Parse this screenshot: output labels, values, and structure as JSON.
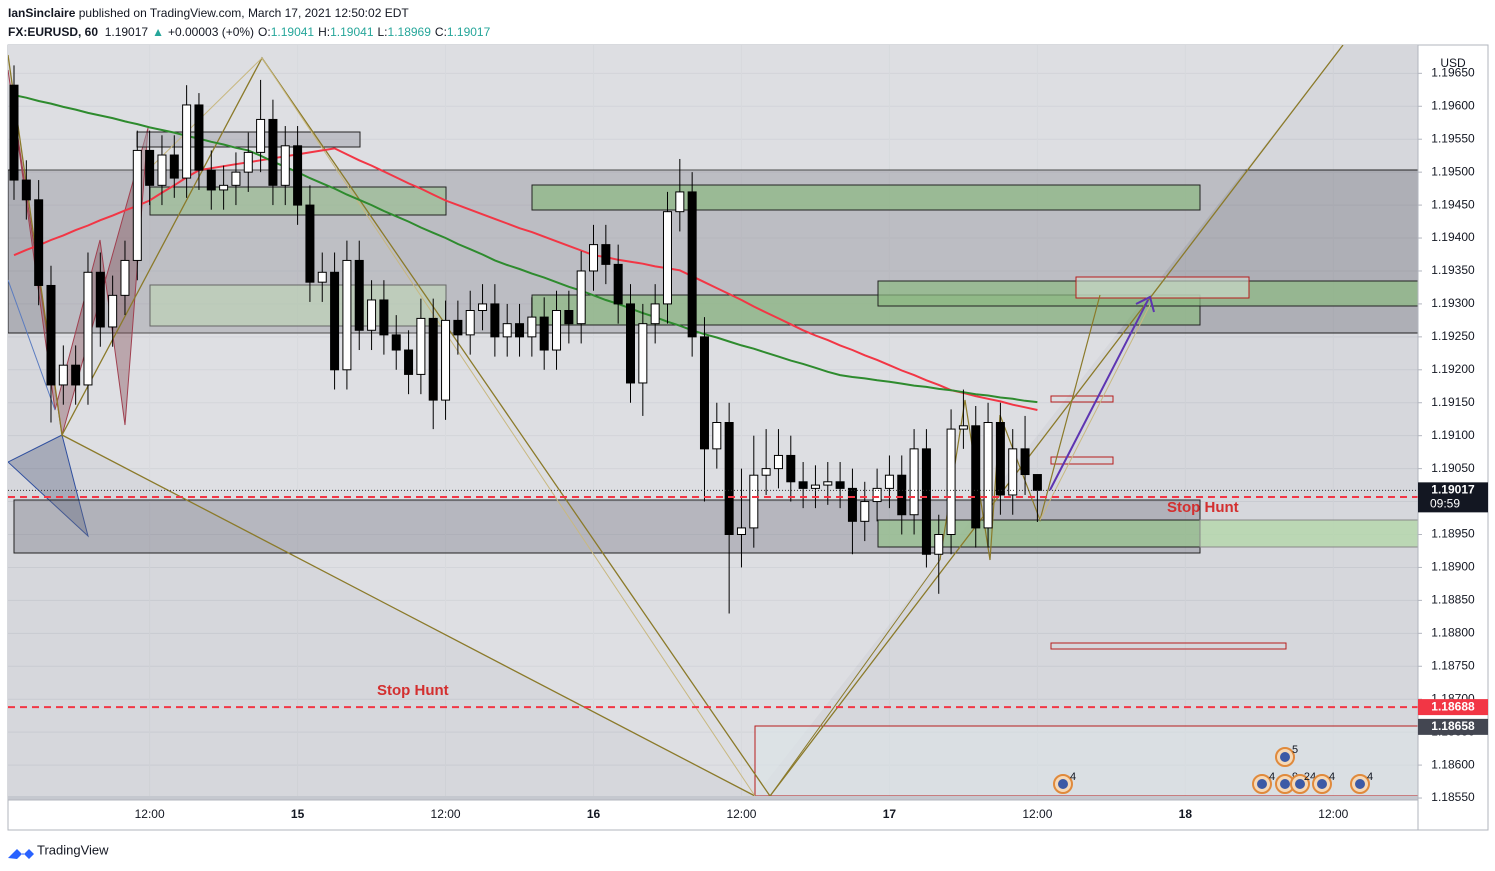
{
  "header": {
    "author": "IanSinclaire",
    "published": "published on TradingView.com, March 17, 2021 12:50:02 EDT",
    "change": "+0.00003 (+0%)",
    "ohlc_labels": [
      "O:",
      "H:",
      "L:",
      "C:"
    ]
  },
  "chart_data": {
    "type": "candlestick",
    "symbol": "FX:EURUSD, 60",
    "currency": "USD",
    "up_color": "#ffffff",
    "down_color": "#000000",
    "categories": [
      null,
      null,
      null,
      null,
      null,
      null,
      null,
      null,
      null,
      null,
      null,
      "12:00",
      null,
      null,
      null,
      null,
      null,
      null,
      null,
      null,
      null,
      null,
      null,
      "15",
      null,
      null,
      null,
      null,
      null,
      null,
      null,
      null,
      null,
      null,
      null,
      "12:00",
      null,
      null,
      null,
      null,
      null,
      null,
      null,
      null,
      null,
      null,
      null,
      "16",
      null,
      null,
      null,
      null,
      null,
      null,
      null,
      null,
      null,
      null,
      null,
      "12:00",
      null,
      null,
      null,
      null,
      null,
      null,
      null,
      null,
      null,
      null,
      null,
      "17",
      null,
      null,
      null,
      null,
      null,
      null,
      null,
      null,
      null,
      null,
      null,
      "12:00",
      null,
      null,
      null,
      null,
      null,
      null,
      null,
      null,
      null,
      null,
      null,
      "18",
      null,
      null,
      null,
      null,
      null,
      null,
      null,
      null,
      null,
      null,
      null,
      "12:00",
      null,
      null,
      null,
      null,
      null,
      null
    ],
    "open": [
      1.19632,
      1.19488,
      1.19458,
      1.19328,
      1.19177,
      1.19207,
      1.19177,
      1.19348,
      1.19265,
      1.19313,
      1.19366,
      1.19533,
      1.1948,
      1.19526,
      1.19491,
      1.19602,
      1.19503,
      1.19473,
      1.1948,
      1.195,
      1.1953,
      1.1958,
      1.1948,
      1.1954,
      1.1945,
      1.19333,
      1.19348,
      1.192,
      1.19366,
      1.1926,
      1.19306,
      1.19253,
      1.1923,
      1.19193,
      1.19278,
      1.19154,
      1.19275,
      1.19253,
      1.1929,
      1.193,
      1.1925,
      1.1927,
      1.1925,
      1.1928,
      1.1923,
      1.1929,
      1.1927,
      1.1935,
      1.1939,
      1.1936,
      1.193,
      1.1918,
      1.1927,
      1.193,
      1.1944,
      1.1947,
      1.1925,
      1.1908,
      1.1912,
      1.1895,
      1.1896,
      1.1904,
      1.1905,
      1.1907,
      1.1903,
      1.1902,
      1.19025,
      1.1903,
      1.1902,
      1.1897,
      1.19,
      1.1902,
      1.1904,
      1.1898,
      1.1908,
      1.1892,
      1.1895,
      1.1911,
      1.19115,
      1.1896,
      1.1912,
      1.1901,
      1.1908,
      1.19041,
      null,
      null,
      null,
      null,
      null,
      null,
      null,
      null,
      null,
      null,
      null,
      null,
      null,
      null,
      null,
      null,
      null,
      null,
      null,
      null,
      null,
      null,
      null,
      null,
      null,
      null,
      null,
      null,
      null,
      null
    ],
    "high": [
      1.19662,
      1.19518,
      1.19488,
      1.19358,
      1.19237,
      1.19237,
      1.19378,
      1.19378,
      1.19343,
      1.19396,
      1.19563,
      1.19563,
      1.19556,
      1.19556,
      1.19632,
      1.1962,
      1.19533,
      1.1951,
      1.1953,
      1.1956,
      1.1964,
      1.1961,
      1.1957,
      1.1957,
      1.1948,
      1.19378,
      1.19378,
      1.19396,
      1.19396,
      1.19336,
      1.19336,
      1.19283,
      1.1926,
      1.19308,
      1.19308,
      1.19305,
      1.19305,
      1.1932,
      1.1933,
      1.1933,
      1.193,
      1.193,
      1.1931,
      1.1931,
      1.1932,
      1.1932,
      1.1938,
      1.1942,
      1.1942,
      1.1939,
      1.1933,
      1.193,
      1.1933,
      1.1947,
      1.1952,
      1.195,
      1.1928,
      1.1915,
      1.1915,
      1.1905,
      1.191,
      1.1911,
      1.1911,
      1.191,
      1.1906,
      1.19055,
      1.1906,
      1.1906,
      1.1905,
      1.1903,
      1.1905,
      1.1907,
      1.1907,
      1.1911,
      1.1911,
      1.1898,
      1.1914,
      1.1917,
      1.19145,
      1.1915,
      1.1915,
      1.1911,
      1.1913,
      1.19041,
      null,
      null,
      null,
      null,
      null,
      null,
      null,
      null,
      null,
      null,
      null,
      null,
      null,
      null,
      null,
      null,
      null,
      null,
      null,
      null,
      null,
      null,
      null,
      null,
      null,
      null,
      null,
      null,
      null,
      null
    ],
    "low": [
      1.19458,
      1.19428,
      1.19298,
      1.1912,
      1.19147,
      1.19147,
      1.19147,
      1.19235,
      1.19235,
      1.19283,
      1.19336,
      1.1945,
      1.1945,
      1.19461,
      1.19461,
      1.19473,
      1.19443,
      1.19443,
      1.1945,
      1.1947,
      1.195,
      1.1945,
      1.1945,
      1.1942,
      1.19303,
      1.19303,
      1.1917,
      1.1917,
      1.1923,
      1.1923,
      1.19223,
      1.192,
      1.19163,
      1.19163,
      1.1911,
      1.19124,
      1.19223,
      1.19223,
      1.1926,
      1.1922,
      1.1922,
      1.1922,
      1.1922,
      1.192,
      1.192,
      1.1924,
      1.1924,
      1.1932,
      1.1933,
      1.1927,
      1.1915,
      1.1913,
      1.1924,
      1.1927,
      1.1941,
      1.1922,
      1.19,
      1.1905,
      1.1883,
      1.189,
      1.1893,
      1.1901,
      1.1902,
      1.19,
      1.1899,
      1.1899,
      1.18995,
      1.1899,
      1.1892,
      1.1894,
      1.1897,
      1.1899,
      1.1895,
      1.1895,
      1.189,
      1.1886,
      1.1892,
      1.1908,
      1.1893,
      1.1893,
      1.1898,
      1.1898,
      1.1901,
      1.18969,
      null,
      null,
      null,
      null,
      null,
      null,
      null,
      null,
      null,
      null,
      null,
      null,
      null,
      null,
      null,
      null,
      null,
      null,
      null,
      null,
      null,
      null,
      null,
      null,
      null,
      null,
      null,
      null,
      null,
      null
    ],
    "close": [
      1.19488,
      1.19458,
      1.19328,
      1.19177,
      1.19207,
      1.19177,
      1.19348,
      1.19265,
      1.19313,
      1.19366,
      1.19533,
      1.1948,
      1.19526,
      1.19491,
      1.19602,
      1.19503,
      1.19473,
      1.1948,
      1.195,
      1.1953,
      1.1958,
      1.1948,
      1.1954,
      1.1945,
      1.19333,
      1.19348,
      1.192,
      1.19366,
      1.1926,
      1.19306,
      1.19253,
      1.1923,
      1.19193,
      1.19278,
      1.19154,
      1.19275,
      1.19253,
      1.1929,
      1.193,
      1.1925,
      1.1927,
      1.1925,
      1.1928,
      1.1923,
      1.1929,
      1.1927,
      1.1935,
      1.1939,
      1.1936,
      1.193,
      1.1918,
      1.1927,
      1.193,
      1.1944,
      1.1947,
      1.1925,
      1.1908,
      1.1912,
      1.1895,
      1.1896,
      1.1904,
      1.1905,
      1.1907,
      1.1903,
      1.1902,
      1.19025,
      1.1903,
      1.1902,
      1.1897,
      1.19,
      1.1902,
      1.1904,
      1.1898,
      1.1908,
      1.1892,
      1.1895,
      1.1911,
      1.19115,
      1.1896,
      1.1912,
      1.1901,
      1.1908,
      1.19041,
      1.19017,
      null,
      null,
      null,
      null,
      null,
      null,
      null,
      null,
      null,
      null,
      null,
      null,
      null,
      null,
      null,
      null,
      null,
      null,
      null,
      null,
      null,
      null,
      null,
      null,
      null,
      null,
      null,
      null,
      null,
      null
    ],
    "series": [
      {
        "color": "#f23645",
        "values": [
          1.19374,
          1.19382,
          1.19389,
          1.19397,
          1.19404,
          1.19412,
          1.19419,
          1.19427,
          1.19434,
          1.19442,
          1.19449,
          1.19457,
          1.19469,
          1.1948,
          1.19492,
          1.19503,
          1.19506,
          1.19509,
          1.19512,
          1.19515,
          1.19518,
          1.19521,
          1.19524,
          1.19527,
          1.1953,
          1.19533,
          1.19536,
          1.19527,
          1.19518,
          1.1951,
          1.19501,
          1.19492,
          1.19483,
          1.19475,
          1.19466,
          1.19457,
          1.1945,
          1.19443,
          1.19436,
          1.19429,
          1.19422,
          1.19415,
          1.19409,
          1.19402,
          1.19395,
          1.19388,
          1.19381,
          1.19374,
          1.19371,
          1.19367,
          1.19364,
          1.19361,
          1.19357,
          1.19354,
          1.19351,
          1.19342,
          1.19333,
          1.19324,
          1.19315,
          1.19306,
          1.19296,
          1.19287,
          1.19278,
          1.19269,
          1.1926,
          1.19252,
          1.19245,
          1.19237,
          1.1923,
          1.19222,
          1.19215,
          1.19207,
          1.19199,
          1.19192,
          1.19184,
          1.19177,
          1.19169,
          1.19165,
          1.1916,
          1.19156,
          1.19152,
          1.19147,
          1.19143,
          1.19139,
          null,
          null,
          null,
          null,
          null,
          null,
          null,
          null,
          null,
          null,
          null,
          null,
          null,
          null,
          null,
          null,
          null,
          null,
          null,
          null,
          null,
          null,
          null,
          null,
          null,
          null,
          null,
          null,
          null,
          null
        ]
      },
      {
        "color": "#2e8b2e",
        "values": [
          1.19617,
          1.19613,
          1.19608,
          1.19604,
          1.19599,
          1.19595,
          1.1959,
          1.19586,
          1.19582,
          1.19577,
          1.19573,
          1.19568,
          1.19564,
          1.1956,
          1.19555,
          1.19551,
          1.19546,
          1.19542,
          1.19537,
          1.19533,
          1.19525,
          1.19516,
          1.19508,
          1.195,
          1.19491,
          1.19483,
          1.19475,
          1.19466,
          1.19458,
          1.1945,
          1.19441,
          1.19433,
          1.19425,
          1.19416,
          1.19408,
          1.194,
          1.19391,
          1.19383,
          1.19375,
          1.19366,
          1.19359,
          1.19353,
          1.19346,
          1.1934,
          1.19333,
          1.19326,
          1.1932,
          1.19313,
          1.19306,
          1.193,
          1.19293,
          1.19286,
          1.1928,
          1.19273,
          1.19267,
          1.1926,
          1.19254,
          1.19249,
          1.19243,
          1.19237,
          1.19232,
          1.19226,
          1.1922,
          1.19214,
          1.19209,
          1.19203,
          1.19197,
          1.19192,
          1.19189,
          1.19187,
          1.19184,
          1.19182,
          1.19179,
          1.19176,
          1.19174,
          1.19171,
          1.19169,
          1.19166,
          1.19163,
          1.19161,
          1.19158,
          1.19156,
          1.19153,
          1.19151,
          null,
          null,
          null,
          null,
          null,
          null,
          null,
          null,
          null,
          null,
          null,
          null,
          null,
          null,
          null,
          null,
          null,
          null,
          null,
          null,
          null,
          null,
          null,
          null,
          null,
          null,
          null,
          null,
          null,
          null
        ]
      }
    ],
    "ylim": [
      1.18547,
      1.19693
    ],
    "yticks": [
      {
        "value": 1.1855,
        "label": "1.18550"
      },
      {
        "value": 1.186,
        "label": "1.18600"
      },
      {
        "value": 1.1865,
        "label": "1.18650"
      },
      {
        "value": 1.187,
        "label": "1.18700"
      },
      {
        "value": 1.1875,
        "label": "1.18750"
      },
      {
        "value": 1.188,
        "label": "1.18800"
      },
      {
        "value": 1.1885,
        "label": "1.18850"
      },
      {
        "value": 1.189,
        "label": "1.18900"
      },
      {
        "value": 1.1895,
        "label": "1.18950"
      },
      {
        "value": 1.19,
        "label": "1.19000"
      },
      {
        "value": 1.1905,
        "label": "1.19050"
      },
      {
        "value": 1.191,
        "label": "1.19100"
      },
      {
        "value": 1.1915,
        "label": "1.19150"
      },
      {
        "value": 1.192,
        "label": "1.19200"
      },
      {
        "value": 1.1925,
        "label": "1.19250"
      },
      {
        "value": 1.193,
        "label": "1.19300"
      },
      {
        "value": 1.1935,
        "label": "1.19350"
      },
      {
        "value": 1.194,
        "label": "1.19400"
      },
      {
        "value": 1.1945,
        "label": "1.19450"
      },
      {
        "value": 1.195,
        "label": "1.19500"
      },
      {
        "value": 1.1955,
        "label": "1.19550"
      },
      {
        "value": 1.196,
        "label": "1.19600"
      },
      {
        "value": 1.1965,
        "label": "1.19650"
      }
    ],
    "grid": true,
    "countdown": "09:59",
    "levels": [
      {
        "value": 1.19007,
        "color": "#f23645",
        "dashed": true
      },
      {
        "value": 1.18688,
        "color": "#f23645",
        "dashed": true
      },
      {
        "value": 1.18658,
        "color": "#434651",
        "dashed": false
      }
    ],
    "annotations": [
      {
        "text": "Stop Hunt",
        "color": "#d32f2f"
      },
      {
        "text": "Stop Hunt",
        "color": "#d32f2f"
      }
    ],
    "event_counts": [
      4,
      5,
      4,
      9,
      24,
      4,
      4
    ]
  },
  "footer": {
    "brand": "TradingView"
  }
}
